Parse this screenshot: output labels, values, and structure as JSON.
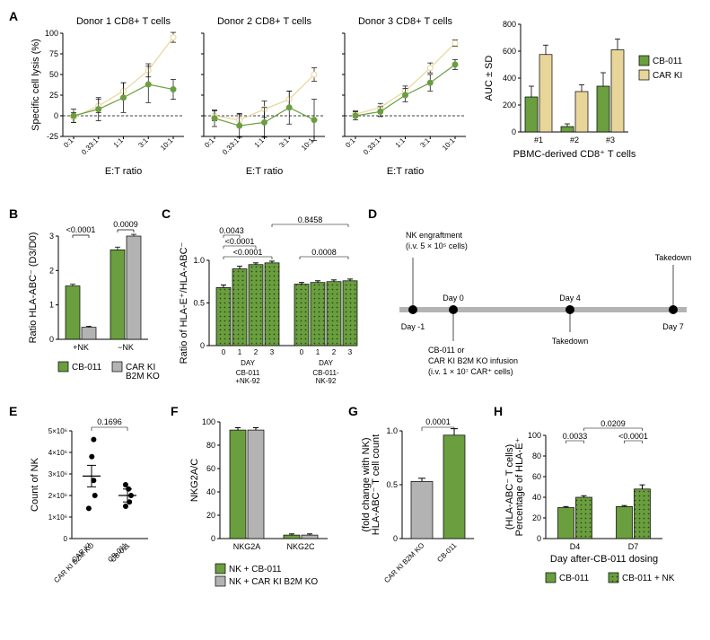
{
  "colors": {
    "cb011": "#6a9e3f",
    "carki": "#e8d59a",
    "grey": "#b3b3b3",
    "dotpattern": "#4d7a2a",
    "black": "#000000"
  },
  "A": {
    "label": "A",
    "lineplots": [
      {
        "title": "Donor 1 CD8⁺ T cells"
      },
      {
        "title": "Donor 2 CD8⁺ T cells"
      },
      {
        "title": "Donor 3 CD8⁺ T cells"
      }
    ],
    "x_categories": [
      "0:1",
      "0.33:1",
      "1:1",
      "3:1",
      "10:1"
    ],
    "x_axis_label": "E:T ratio",
    "y_axis_label": "Specific cell lysis (%)",
    "y_ticks": [
      -25,
      0,
      25,
      50,
      75,
      100
    ],
    "line_data": [
      {
        "cb011": [
          0,
          8,
          22,
          38,
          32
        ],
        "carki": [
          -2,
          12,
          30,
          55,
          95
        ],
        "cb_err": [
          8,
          14,
          18,
          22,
          12
        ],
        "ck_err": [
          6,
          8,
          10,
          8,
          6
        ]
      },
      {
        "cb011": [
          -3,
          -12,
          -8,
          10,
          -5
        ],
        "carki": [
          0,
          -5,
          8,
          20,
          50
        ],
        "cb_err": [
          10,
          14,
          18,
          20,
          25
        ],
        "ck_err": [
          6,
          8,
          10,
          10,
          8
        ]
      },
      {
        "cb011": [
          0,
          5,
          25,
          40,
          62
        ],
        "carki": [
          2,
          10,
          30,
          58,
          88
        ],
        "cb_err": [
          5,
          6,
          8,
          10,
          6
        ],
        "ck_err": [
          4,
          5,
          6,
          6,
          4
        ]
      }
    ],
    "barplot": {
      "y_axis_label": "AUC ± SD",
      "y_ticks": [
        0,
        200,
        400,
        600,
        800
      ],
      "x_axis_label": "PBMC-derived CD8⁺ T cells",
      "categories": [
        "#1",
        "#2",
        "#3"
      ],
      "cb011": [
        260,
        40,
        340
      ],
      "carki": [
        575,
        300,
        610
      ],
      "cb_err": [
        80,
        20,
        100
      ],
      "ck_err": [
        70,
        50,
        80
      ],
      "legend": [
        {
          "label": "CB-011",
          "key": "cb011"
        },
        {
          "label": "CAR KI",
          "key": "carki"
        }
      ]
    }
  },
  "B": {
    "label": "B",
    "y_axis_label": "Ratio HLA-ABC⁻ (D3/D0)",
    "y_ticks": [
      0,
      1,
      2,
      3
    ],
    "groups": [
      "+NK",
      "−NK"
    ],
    "data": {
      "cb011": [
        1.55,
        2.6
      ],
      "grey": [
        0.35,
        3.0
      ],
      "cb_err": [
        0.05,
        0.08
      ],
      "grey_err": [
        0.03,
        0.05
      ]
    },
    "p": [
      "<0.0001",
      "0.0009"
    ],
    "legend": [
      {
        "label": "CB-011",
        "key": "cb011"
      },
      {
        "label": "CAR KI\nB2M KO",
        "key": "grey"
      }
    ]
  },
  "C": {
    "label": "C",
    "y_axis_label": "Ratio of HLA-E⁺/HLA-ABC⁻",
    "y_ticks": [
      0,
      0.5,
      1.0
    ],
    "x_days": [
      "0",
      "1",
      "2",
      "3"
    ],
    "groups": [
      {
        "name": "CB-011\n+NK-92",
        "vals": [
          0.68,
          0.9,
          0.95,
          0.97
        ],
        "err": [
          0.03,
          0.03,
          0.02,
          0.02
        ]
      },
      {
        "name": "CB-011-\nNK-92",
        "vals": [
          0.72,
          0.74,
          0.75,
          0.76
        ],
        "err": [
          0.02,
          0.02,
          0.02,
          0.02
        ]
      }
    ],
    "p": [
      "0.0043",
      "<0.0001",
      "<0.0001",
      "0.8458",
      "0.0008"
    ],
    "xgrouplabel": "DAY"
  },
  "D": {
    "label": "D",
    "events": [
      {
        "day": "Day -1",
        "above": "NK engraftment\n(i.v. 5 × 10⁵ cells)",
        "below": ""
      },
      {
        "day": "Day 0",
        "above": "",
        "below": "CB-011 or\nCAR KI B2M KO infusion\n(i.v. 1 × 10⁷ CAR⁺ cells)"
      },
      {
        "day": "Day 4",
        "above": "",
        "below": "Takedown"
      },
      {
        "day": "Day 7",
        "above": "Takedown",
        "below": ""
      }
    ]
  },
  "E": {
    "label": "E",
    "y_axis_label": "Count of NK",
    "y_ticks": [
      "0",
      "1×10⁶",
      "2×10⁶",
      "3×10⁶",
      "4×10⁶",
      "5×10⁶"
    ],
    "categories": [
      "CAR KI\nB2M KO",
      "CB-011"
    ],
    "means": [
      2.9,
      2.0
    ],
    "err": [
      0.5,
      0.3
    ],
    "points": [
      [
        1.4,
        2.0,
        2.7,
        3.8,
        4.6
      ],
      [
        1.5,
        1.7,
        2.0,
        2.3,
        2.5
      ]
    ],
    "p": "0.1696"
  },
  "F": {
    "label": "F",
    "y_axis_label": "NKG2A/C",
    "y_ticks": [
      0,
      20,
      40,
      60,
      80,
      100
    ],
    "categories": [
      "NKG2A",
      "NKG2C"
    ],
    "series": {
      "green": [
        93,
        3
      ],
      "grey": [
        93,
        3
      ],
      "green_err": [
        2,
        1
      ],
      "grey_err": [
        2,
        1
      ]
    },
    "legend": [
      {
        "label": "NK + CB-011",
        "key": "cb011"
      },
      {
        "label": "NK + CAR KI B2M KO",
        "key": "grey"
      }
    ]
  },
  "G": {
    "label": "G",
    "y_axis_label": "HLA-ABC⁻ T cell count\n(fold change with NK)",
    "y_ticks": [
      0,
      0.5,
      1.0
    ],
    "categories": [
      "CAR KI\nB2M KO",
      "CB-011"
    ],
    "vals": [
      0.53,
      0.96
    ],
    "err": [
      0.03,
      0.06
    ],
    "p": "0.0001"
  },
  "H": {
    "label": "H",
    "y_axis_label": "Percentage of HLA-E⁺\n(HLA-ABC⁻ T cells)",
    "y_ticks": [
      0,
      20,
      40,
      60,
      80,
      100
    ],
    "x_axis_label": "Day after-CB-011 dosing",
    "categories": [
      "D4",
      "D7"
    ],
    "series": {
      "cb011": [
        30,
        31
      ],
      "cb011nk": [
        40,
        48
      ],
      "cb_err": [
        1,
        1
      ],
      "nk_err": [
        1.5,
        4
      ]
    },
    "p": [
      "0.0033",
      "<0.0001",
      "0.0209"
    ],
    "legend": [
      {
        "label": "CB-011",
        "key": "cb011"
      },
      {
        "label": "CB-011 + NK",
        "key": "cb011nk"
      }
    ]
  }
}
